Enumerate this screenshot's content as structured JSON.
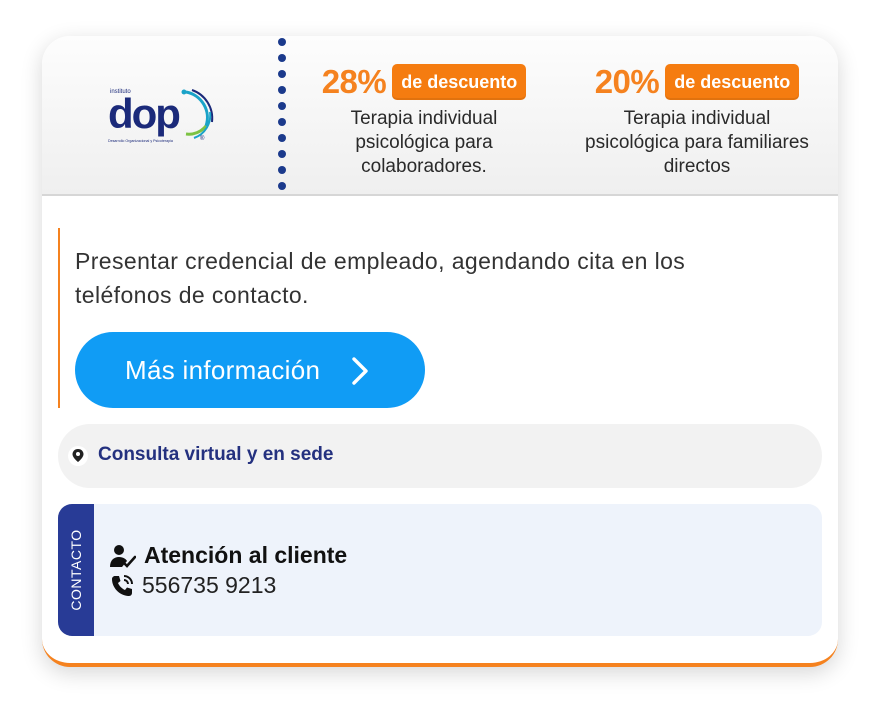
{
  "logo": {
    "small_text": "instituto",
    "brand": "dop",
    "tagline": "Desarrollo Organizacional y Psicoterapia",
    "registered": "®",
    "colors": [
      "#1b2a7a",
      "#1aa3c8",
      "#7cc242"
    ]
  },
  "promos": [
    {
      "percent": "28%",
      "badge": "de descuento",
      "description_lines": [
        "Terapia individual",
        "psicológica para",
        "colaboradores."
      ]
    },
    {
      "percent": "20%",
      "badge": "de descuento",
      "description_lines": [
        "Terapia individual",
        "psicológica para familiares",
        "directos"
      ]
    }
  ],
  "condition": {
    "text_lines": [
      "Presentar credencial de empleado, agendando cita en los",
      "teléfonos de contacto."
    ]
  },
  "more_button": {
    "label": "Más información",
    "icon": "chevron-right-icon"
  },
  "location": {
    "icon": "map-pin-icon",
    "text": "Consulta virtual y en sede"
  },
  "contact": {
    "tab_label": "CONTACTO",
    "title": "Atención al cliente",
    "title_icon": "user-check-icon",
    "phone": "556735 9213",
    "phone_icon": "phone-icon"
  },
  "colors": {
    "accent_orange": "#f5821f",
    "button_blue": "#109cf5",
    "navy": "#283b96",
    "location_text": "#24317f"
  }
}
